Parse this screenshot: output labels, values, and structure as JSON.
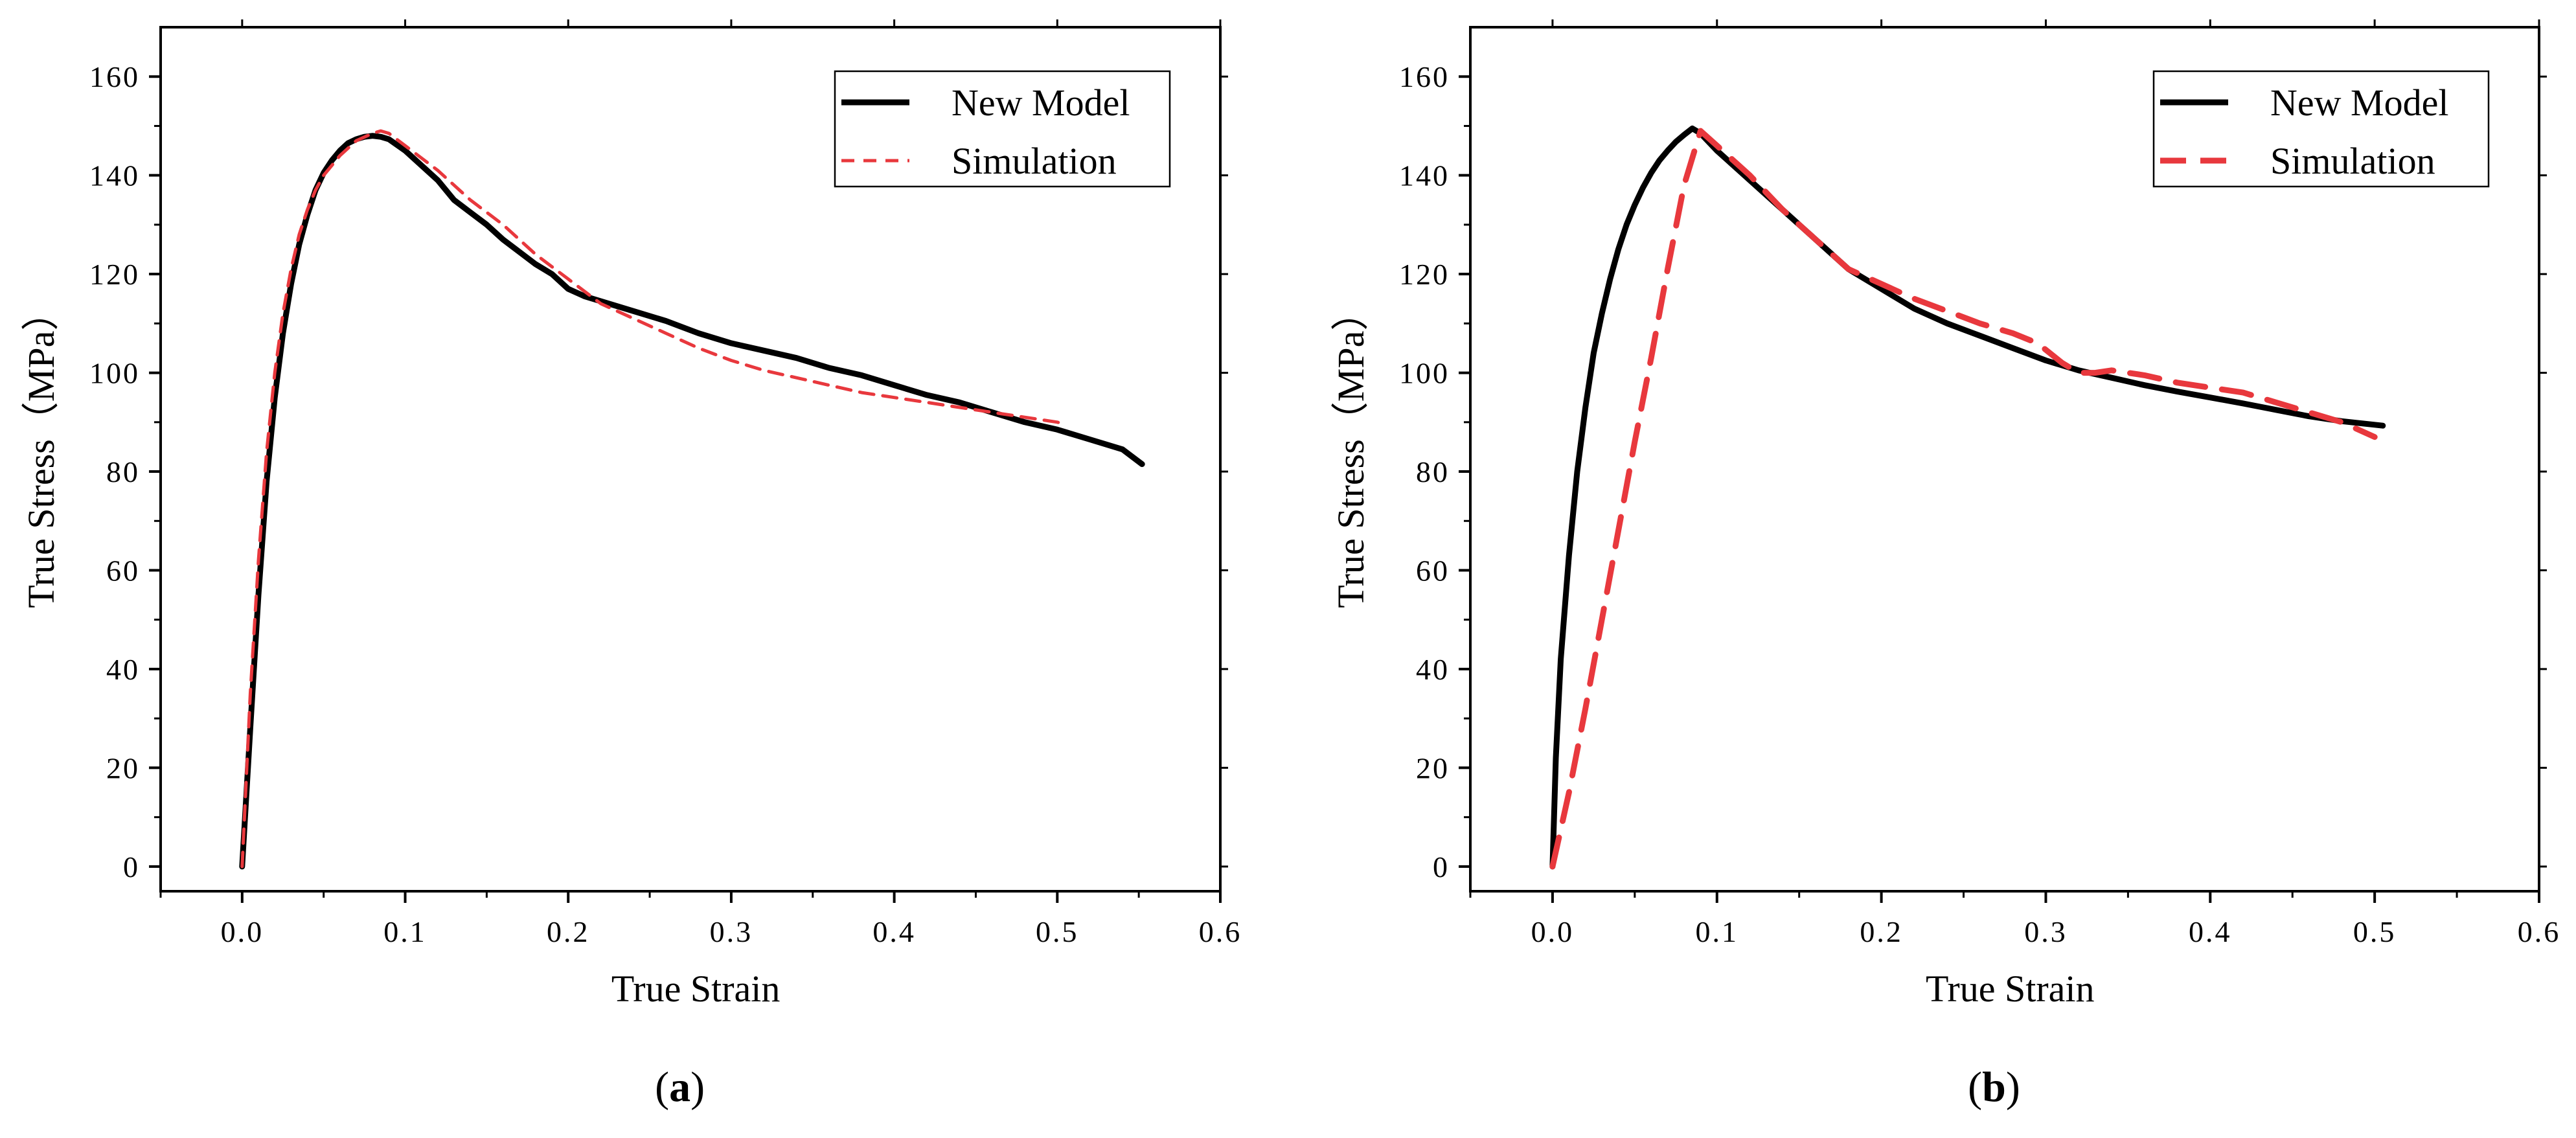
{
  "colors": {
    "new_model": "#000000",
    "simulation": "#e8383d",
    "axis": "#000000"
  },
  "chart_data": [
    {
      "type": "line",
      "panel_label": {
        "open": "(",
        "letter": "a",
        "close": ")"
      },
      "xlabel": "True Strain",
      "ylabel": "True Stress（MPa）",
      "xlim": [
        -0.05,
        0.6
      ],
      "ylim": [
        -5,
        170
      ],
      "xticks": [
        0.0,
        0.1,
        0.2,
        0.3,
        0.4,
        0.5,
        0.6
      ],
      "xtick_labels": [
        "0.0",
        "0.1",
        "0.2",
        "0.3",
        "0.4",
        "0.5",
        "0.6"
      ],
      "yticks": [
        0,
        20,
        40,
        60,
        80,
        100,
        120,
        140,
        160
      ],
      "ytick_labels": [
        "0",
        "20",
        "40",
        "60",
        "80",
        "100",
        "120",
        "140",
        "160"
      ],
      "legend_position": "top-right",
      "series": [
        {
          "name": "New Model",
          "style": "solid",
          "x": [
            0,
            0.005,
            0.01,
            0.015,
            0.02,
            0.025,
            0.03,
            0.035,
            0.04,
            0.045,
            0.05,
            0.055,
            0.06,
            0.065,
            0.07,
            0.075,
            0.08,
            0.085,
            0.09,
            0.1,
            0.11,
            0.12,
            0.13,
            0.14,
            0.15,
            0.16,
            0.17,
            0.18,
            0.19,
            0.2,
            0.21,
            0.22,
            0.24,
            0.26,
            0.28,
            0.3,
            0.32,
            0.34,
            0.36,
            0.38,
            0.4,
            0.42,
            0.44,
            0.46,
            0.48,
            0.5,
            0.52,
            0.54,
            0.552
          ],
          "y": [
            0,
            28,
            55,
            78,
            95,
            108,
            118,
            126,
            132,
            137,
            140.5,
            143,
            145,
            146.5,
            147.3,
            147.8,
            148,
            147.8,
            147.3,
            145,
            142,
            139,
            135,
            132.5,
            130,
            127,
            124.5,
            122,
            120,
            117,
            115.5,
            114.5,
            112.5,
            110.5,
            108,
            106,
            104.5,
            103,
            101,
            99.5,
            97.5,
            95.5,
            94,
            92,
            90,
            88.5,
            86.5,
            84.5,
            81.5
          ]
        },
        {
          "name": "Simulation",
          "style": "dashed",
          "x": [
            0,
            0.005,
            0.01,
            0.015,
            0.02,
            0.025,
            0.03,
            0.035,
            0.04,
            0.045,
            0.05,
            0.06,
            0.07,
            0.08,
            0.085,
            0.09,
            0.1,
            0.12,
            0.14,
            0.16,
            0.18,
            0.2,
            0.22,
            0.24,
            0.26,
            0.28,
            0.3,
            0.32,
            0.34,
            0.36,
            0.38,
            0.4,
            0.42,
            0.44,
            0.46,
            0.48,
            0.5,
            0.505
          ],
          "y": [
            0,
            35,
            62,
            84,
            100,
            112,
            121,
            128,
            133,
            137,
            140,
            144,
            147,
            148.5,
            149,
            148.5,
            146,
            141,
            135,
            130,
            124,
            119,
            114,
            111,
            108,
            105,
            102.5,
            100.5,
            99,
            97.5,
            96,
            95,
            94,
            93,
            92,
            91,
            90,
            89.5
          ]
        }
      ]
    },
    {
      "type": "line",
      "panel_label": {
        "open": "(",
        "letter": "b",
        "close": ")"
      },
      "xlabel": "True Strain",
      "ylabel": "True Stress（MPa）",
      "xlim": [
        -0.05,
        0.6
      ],
      "ylim": [
        -5,
        170
      ],
      "xticks": [
        0.0,
        0.1,
        0.2,
        0.3,
        0.4,
        0.5,
        0.6
      ],
      "xtick_labels": [
        "0.0",
        "0.1",
        "0.2",
        "0.3",
        "0.4",
        "0.5",
        "0.6"
      ],
      "yticks": [
        0,
        20,
        40,
        60,
        80,
        100,
        120,
        140,
        160
      ],
      "ytick_labels": [
        "0",
        "20",
        "40",
        "60",
        "80",
        "100",
        "120",
        "140",
        "160"
      ],
      "legend_position": "top-right",
      "series": [
        {
          "name": "New Model",
          "style": "solid",
          "x": [
            0,
            0.002,
            0.005,
            0.01,
            0.015,
            0.02,
            0.025,
            0.03,
            0.035,
            0.04,
            0.045,
            0.05,
            0.055,
            0.06,
            0.065,
            0.07,
            0.075,
            0.08,
            0.085,
            0.09,
            0.1,
            0.12,
            0.14,
            0.16,
            0.18,
            0.2,
            0.22,
            0.24,
            0.26,
            0.28,
            0.3,
            0.32,
            0.34,
            0.36,
            0.38,
            0.4,
            0.42,
            0.44,
            0.46,
            0.48,
            0.505
          ],
          "y": [
            0,
            22,
            42,
            63,
            80,
            93,
            104,
            112,
            119,
            125,
            130,
            134,
            137.5,
            140.5,
            143,
            145,
            146.8,
            148.2,
            149.5,
            148.5,
            145,
            139,
            133,
            127,
            121,
            117,
            113,
            110,
            107.5,
            105,
            102.5,
            100.5,
            99,
            97.5,
            96.2,
            95,
            93.8,
            92.5,
            91.2,
            90.2,
            89.3
          ]
        },
        {
          "name": "Simulation",
          "style": "dashed",
          "x": [
            0,
            0.01,
            0.02,
            0.03,
            0.04,
            0.05,
            0.06,
            0.07,
            0.08,
            0.09,
            0.1,
            0.12,
            0.14,
            0.16,
            0.18,
            0.2,
            0.22,
            0.24,
            0.26,
            0.28,
            0.295,
            0.31,
            0.32,
            0.33,
            0.34,
            0.36,
            0.38,
            0.4,
            0.42,
            0.44,
            0.46,
            0.48,
            0.5
          ],
          "y": [
            0,
            15,
            32,
            50,
            68,
            86,
            103,
            121,
            138,
            149,
            146,
            140,
            133,
            127,
            121,
            118,
            115,
            112.5,
            110,
            108,
            106,
            102,
            100,
            100,
            100.5,
            99.5,
            98,
            97,
            96,
            94,
            92,
            90,
            87
          ]
        }
      ]
    }
  ]
}
